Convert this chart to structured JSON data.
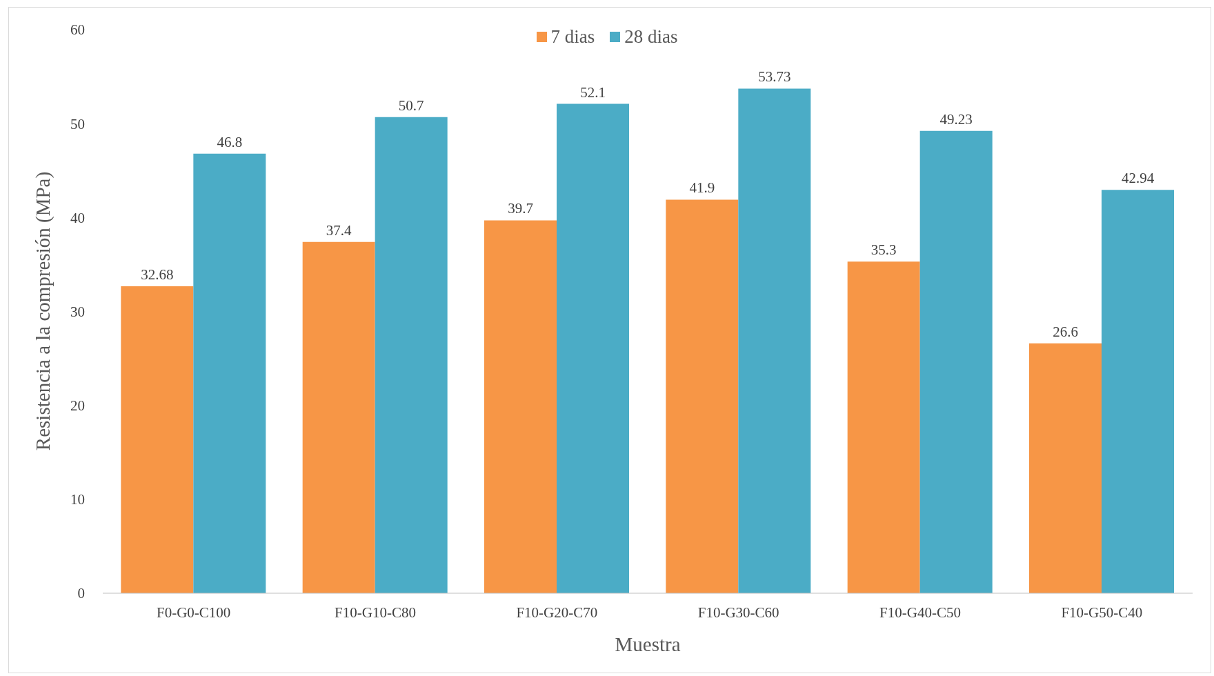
{
  "chart_data": {
    "type": "bar",
    "xlabel": "Muestra",
    "ylabel": "Resistencia a la compresión (MPa)",
    "categories": [
      "F0-G0-C100",
      "F10-G10-C80",
      "F10-G20-C70",
      "F10-G30-C60",
      "F10-G40-C50",
      "F10-G50-C40"
    ],
    "series": [
      {
        "name": "7 dias",
        "color": "#f79646",
        "values": [
          32.68,
          37.4,
          39.7,
          41.9,
          35.3,
          26.6
        ]
      },
      {
        "name": "28 dias",
        "color": "#4bacc6",
        "values": [
          46.8,
          50.7,
          52.1,
          53.73,
          49.23,
          42.94
        ]
      }
    ],
    "ylim": [
      0,
      60
    ],
    "yticks": [
      0,
      10,
      20,
      30,
      40,
      50,
      60
    ],
    "grid": false,
    "legend": "top",
    "data_labels": true
  }
}
